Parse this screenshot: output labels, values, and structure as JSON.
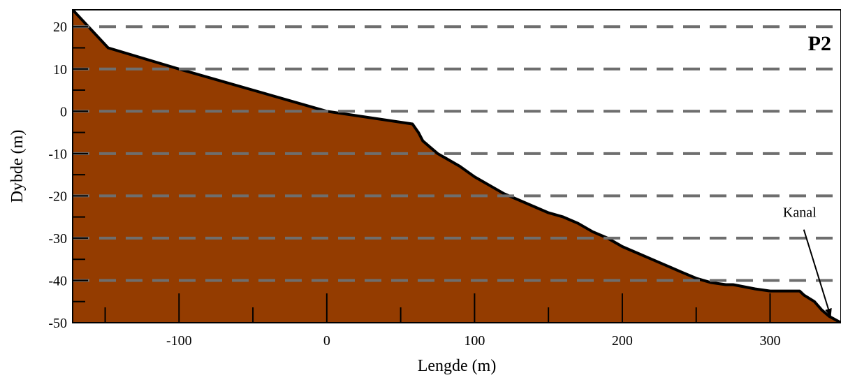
{
  "chart_data": {
    "type": "area",
    "xlabel": "Lengde (m)",
    "ylabel": "Dybde (m)",
    "xlim": [
      -172,
      348
    ],
    "ylim": [
      -50,
      24
    ],
    "x_ticks": [
      -100,
      0,
      100,
      200,
      300
    ],
    "x_minor_ticks": [
      -150,
      -50,
      50,
      150,
      250
    ],
    "y_ticks": [
      20,
      10,
      0,
      -10,
      -20,
      -30,
      -40,
      -50
    ],
    "y_minor_ticks": [
      15,
      5,
      -5,
      -15,
      -25,
      -35,
      -45
    ],
    "grid_lines_y": [
      20,
      10,
      0,
      -10,
      -20,
      -30,
      -40
    ],
    "grid_style": "dashed",
    "panel_label": "P2",
    "fill_color": "#943c00",
    "grid_color": "#6e6e6e",
    "series": [
      {
        "x": [
          -172,
          -148,
          -100,
          -50,
          0,
          58,
          62,
          65,
          70,
          75,
          80,
          90,
          100,
          110,
          120,
          130,
          140,
          150,
          160,
          170,
          180,
          190,
          200,
          210,
          220,
          230,
          240,
          250,
          260,
          270,
          275,
          290,
          300,
          310,
          320,
          323,
          330,
          335,
          340,
          348
        ],
        "y": [
          24,
          15,
          10,
          5,
          0,
          -3,
          -5,
          -7,
          -8.5,
          -10,
          -11,
          -13,
          -15.5,
          -17.5,
          -19.5,
          -21,
          -22.5,
          -24,
          -25,
          -26.5,
          -28.5,
          -30,
          -32,
          -33.5,
          -35,
          -36.5,
          -38,
          -39.5,
          -40.5,
          -41,
          -41,
          -42,
          -42.5,
          -42.5,
          -42.5,
          -43.5,
          -45,
          -47,
          -48.5,
          -50
        ]
      }
    ],
    "annotations": [
      {
        "text": "Kanal",
        "x": 320,
        "y": -25,
        "arrow_to_x": 341,
        "arrow_to_y": -48.5
      }
    ]
  }
}
